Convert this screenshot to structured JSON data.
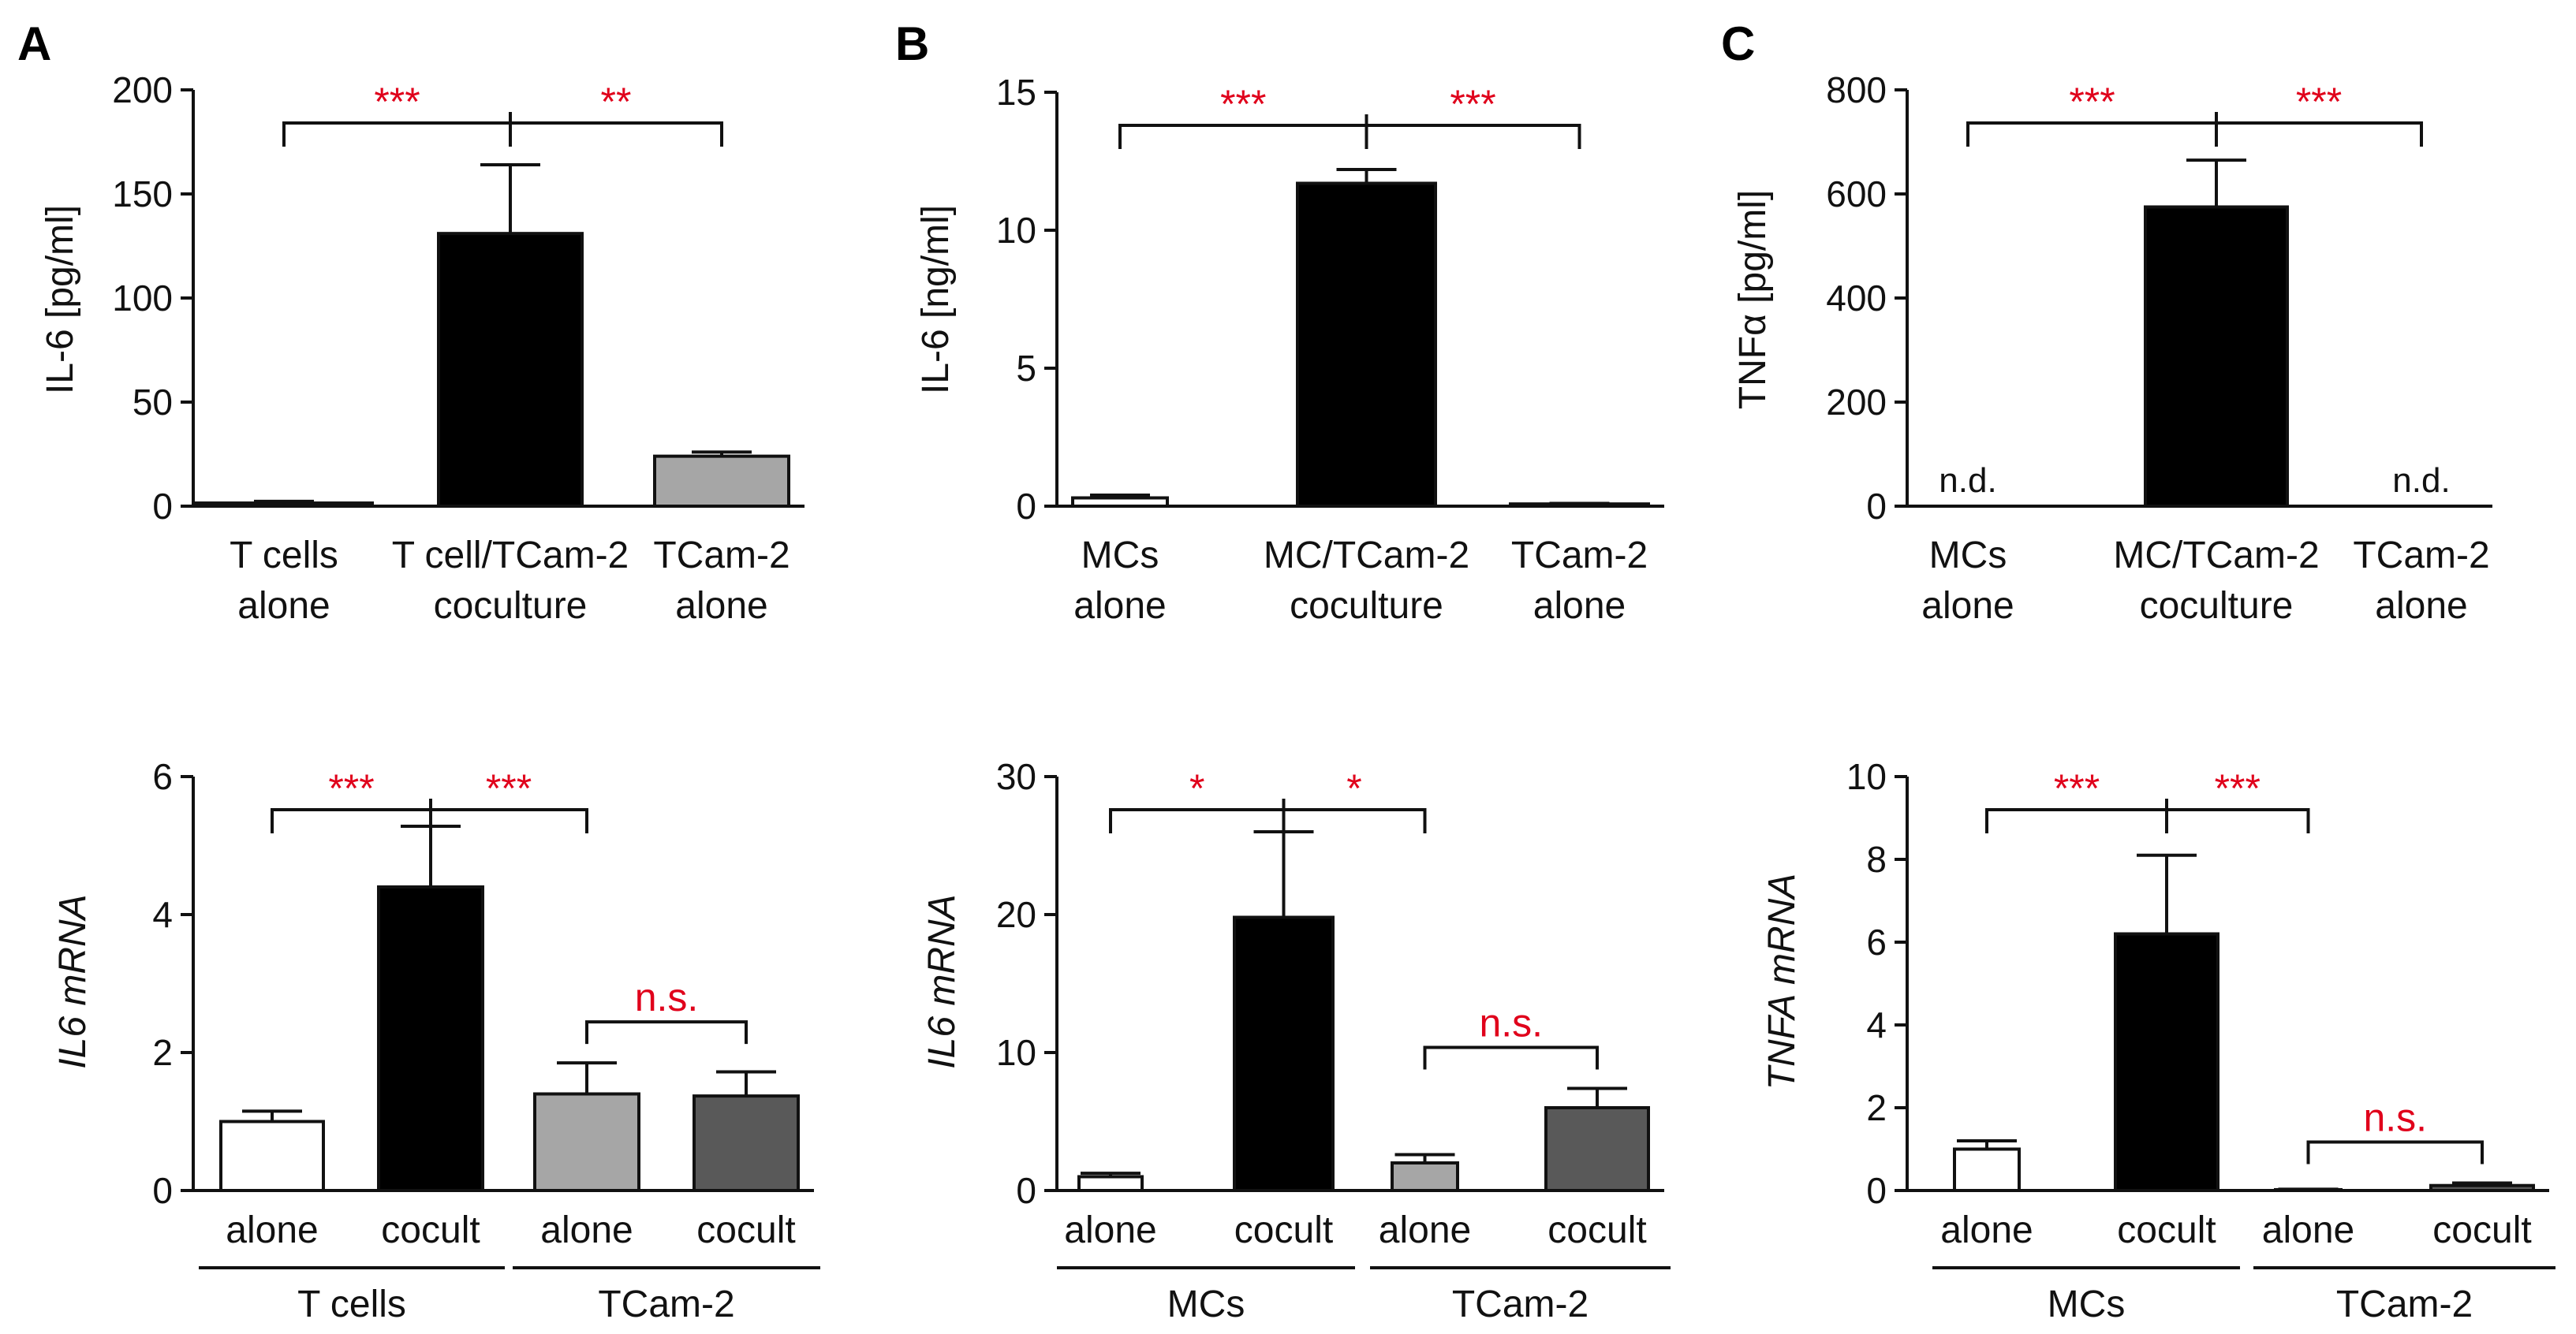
{
  "panel_labels": [
    "A",
    "B",
    "C"
  ],
  "chart_data": [
    {
      "type": "bar",
      "panel": "A",
      "position": "top",
      "ylabel": "IL-6 [pg/ml]",
      "ylabel_parts": [
        {
          "t": "IL-6 [pg/ml]"
        }
      ],
      "ylim": [
        0,
        200
      ],
      "yticks": [
        0,
        50,
        100,
        150,
        200
      ],
      "categories": [
        [
          "T cells",
          "alone"
        ],
        [
          "T cell/TCam-2",
          "coculture"
        ],
        [
          "TCam-2",
          "alone"
        ]
      ],
      "values": [
        1.5,
        131,
        24
      ],
      "errors": [
        0.8,
        33,
        2
      ],
      "colors": [
        "#ffffff",
        "#000000",
        "#a6a6a6"
      ],
      "annotations": [
        {
          "from": 0,
          "to": 1,
          "label": "***"
        },
        {
          "from": 1,
          "to": 2,
          "label": "**"
        }
      ]
    },
    {
      "type": "bar",
      "panel": "B",
      "position": "top",
      "ylabel": "IL-6 [ng/ml]",
      "ylabel_parts": [
        {
          "t": "IL-6 [ng/ml]"
        }
      ],
      "ylim": [
        0,
        15
      ],
      "yticks": [
        0,
        5,
        10,
        15
      ],
      "categories": [
        [
          "MCs",
          "alone"
        ],
        [
          "MC/TCam-2",
          "coculture"
        ],
        [
          "TCam-2",
          "alone"
        ]
      ],
      "values": [
        0.3,
        11.7,
        0.08
      ],
      "errors": [
        0.1,
        0.5,
        0.02
      ],
      "colors": [
        "#ffffff",
        "#000000",
        "#a6a6a6"
      ],
      "annotations": [
        {
          "from": 0,
          "to": 1,
          "label": "***"
        },
        {
          "from": 1,
          "to": 2,
          "label": "***"
        }
      ]
    },
    {
      "type": "bar",
      "panel": "C",
      "position": "top",
      "ylabel": "TNFα [pg/ml]",
      "ylabel_parts": [
        {
          "t": "TNF"
        },
        {
          "t": "α"
        },
        {
          "t": " [pg/ml]"
        }
      ],
      "ylim": [
        0,
        800
      ],
      "yticks": [
        0,
        200,
        400,
        600,
        800
      ],
      "categories": [
        [
          "MCs",
          "alone"
        ],
        [
          "MC/TCam-2",
          "coculture"
        ],
        [
          "TCam-2",
          "alone"
        ]
      ],
      "values": [
        0,
        575,
        0
      ],
      "errors": [
        0,
        90,
        0
      ],
      "colors": [
        "#ffffff",
        "#000000",
        "#a6a6a6"
      ],
      "bar_text": [
        "n.d.",
        "",
        "n.d."
      ],
      "annotations": [
        {
          "from": 0,
          "to": 1,
          "label": "***"
        },
        {
          "from": 1,
          "to": 2,
          "label": "***"
        }
      ]
    },
    {
      "type": "bar",
      "panel": "A",
      "position": "bottom",
      "ylabel": "IL6 mRNA",
      "ylabel_italic": true,
      "ylabel_parts": [
        {
          "t": "IL6 mRNA"
        }
      ],
      "ylim": [
        0,
        6
      ],
      "yticks": [
        0,
        2,
        4,
        6
      ],
      "categories": [
        "alone",
        "cocult",
        "alone",
        "cocult"
      ],
      "groups": [
        {
          "label": "T cells",
          "from": 0,
          "to": 1
        },
        {
          "label": "TCam-2",
          "from": 2,
          "to": 3
        }
      ],
      "values": [
        1.0,
        4.4,
        1.4,
        1.37
      ],
      "errors": [
        0.15,
        0.88,
        0.45,
        0.35
      ],
      "colors": [
        "#ffffff",
        "#000000",
        "#a6a6a6",
        "#595959"
      ],
      "annotations": [
        {
          "from": 0,
          "to": 1,
          "label": "***"
        },
        {
          "from": 1,
          "to": 2,
          "label": "***"
        },
        {
          "from": 2,
          "to": 3,
          "label": "n.s.",
          "single": true
        }
      ]
    },
    {
      "type": "bar",
      "panel": "B",
      "position": "bottom",
      "ylabel": "IL6 mRNA",
      "ylabel_italic": true,
      "ylabel_parts": [
        {
          "t": "IL6 mRNA"
        }
      ],
      "ylim": [
        0,
        30
      ],
      "yticks": [
        0,
        10,
        20,
        30
      ],
      "categories": [
        "alone",
        "cocult",
        "alone",
        "cocult"
      ],
      "groups": [
        {
          "label": "MCs",
          "from": 0,
          "to": 1
        },
        {
          "label": "TCam-2",
          "from": 2,
          "to": 3
        }
      ],
      "values": [
        1.0,
        19.8,
        2.0,
        6.0
      ],
      "errors": [
        0.25,
        6.2,
        0.6,
        1.4
      ],
      "colors": [
        "#ffffff",
        "#000000",
        "#a6a6a6",
        "#595959"
      ],
      "annotations": [
        {
          "from": 0,
          "to": 1,
          "label": "*"
        },
        {
          "from": 1,
          "to": 2,
          "label": "*"
        },
        {
          "from": 2,
          "to": 3,
          "label": "n.s.",
          "single": true
        }
      ]
    },
    {
      "type": "bar",
      "panel": "C",
      "position": "bottom",
      "ylabel": "TNFA mRNA",
      "ylabel_italic": true,
      "ylabel_parts": [
        {
          "t": "TNFA mRNA"
        }
      ],
      "ylim": [
        0,
        10
      ],
      "yticks": [
        0,
        2,
        4,
        6,
        8,
        10
      ],
      "categories": [
        "alone",
        "cocult",
        "alone",
        "cocult"
      ],
      "groups": [
        {
          "label": "MCs",
          "from": 0,
          "to": 1
        },
        {
          "label": "TCam-2",
          "from": 2,
          "to": 3
        }
      ],
      "values": [
        1.0,
        6.2,
        0.02,
        0.12
      ],
      "errors": [
        0.2,
        1.9,
        0.01,
        0.06
      ],
      "colors": [
        "#ffffff",
        "#000000",
        "#a6a6a6",
        "#595959"
      ],
      "annotations": [
        {
          "from": 0,
          "to": 1,
          "label": "***"
        },
        {
          "from": 1,
          "to": 2,
          "label": "***"
        },
        {
          "from": 2,
          "to": 3,
          "label": "n.s.",
          "single": true
        }
      ]
    }
  ],
  "colors": {
    "significance": "#e0001b",
    "axis": "#111111"
  }
}
